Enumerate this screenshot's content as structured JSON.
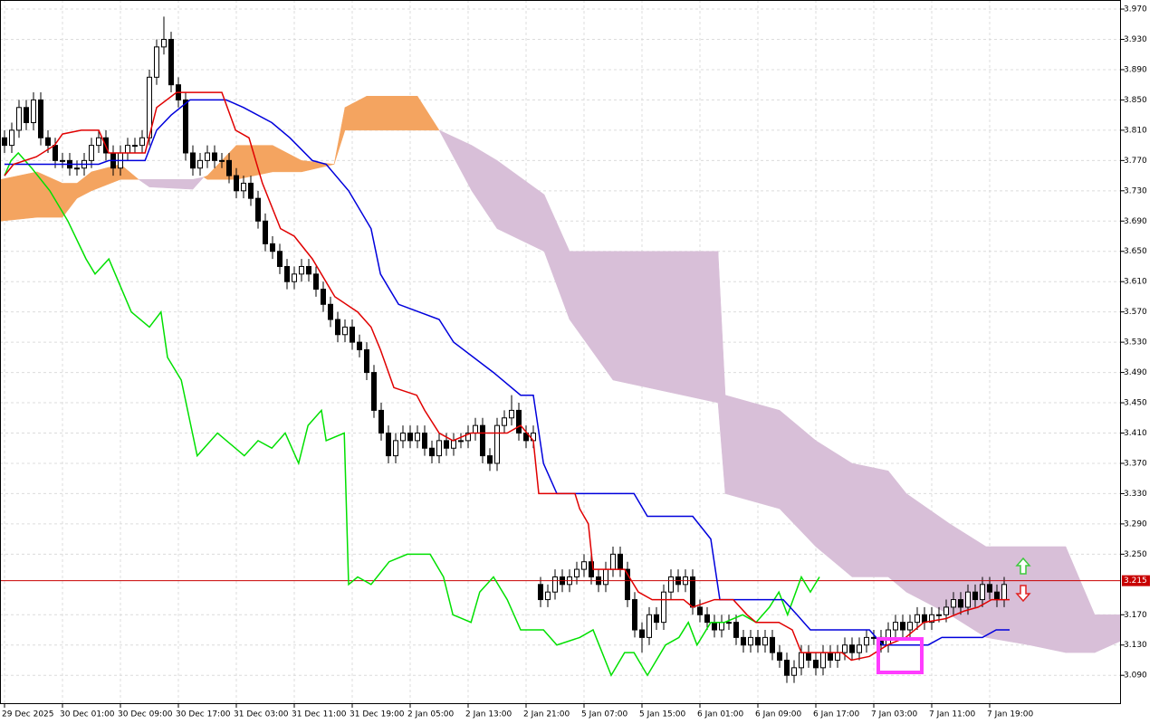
{
  "chart_data": {
    "type": "candlestick",
    "xlim": [
      -0.625,
      154.125
    ],
    "ylim": [
      3.052,
      3.982
    ],
    "grid": true,
    "yticks": [
      {
        "value": 3.97,
        "label": "3.970"
      },
      {
        "value": 3.93,
        "label": "3.930"
      },
      {
        "value": 3.89,
        "label": "3.890"
      },
      {
        "value": 3.85,
        "label": "3.850"
      },
      {
        "value": 3.81,
        "label": "3.810"
      },
      {
        "value": 3.77,
        "label": "3.770"
      },
      {
        "value": 3.73,
        "label": "3.730"
      },
      {
        "value": 3.69,
        "label": "3.690"
      },
      {
        "value": 3.65,
        "label": "3.650"
      },
      {
        "value": 3.61,
        "label": "3.610"
      },
      {
        "value": 3.57,
        "label": "3.570"
      },
      {
        "value": 3.53,
        "label": "3.530"
      },
      {
        "value": 3.49,
        "label": "3.490"
      },
      {
        "value": 3.45,
        "label": "3.450"
      },
      {
        "value": 3.41,
        "label": "3.410"
      },
      {
        "value": 3.37,
        "label": "3.370"
      },
      {
        "value": 3.33,
        "label": "3.330"
      },
      {
        "value": 3.29,
        "label": "3.290"
      },
      {
        "value": 3.25,
        "label": "3.250"
      },
      {
        "value": 3.17,
        "label": "3.170"
      },
      {
        "value": 3.13,
        "label": "3.130"
      },
      {
        "value": 3.09,
        "label": "3.090"
      }
    ],
    "xticks": [
      {
        "value": 0,
        "label": "29 Dec 2025"
      },
      {
        "value": 8,
        "label": "30 Dec 01:00"
      },
      {
        "value": 16,
        "label": "30 Dec 09:00"
      },
      {
        "value": 24,
        "label": "30 Dec 17:00"
      },
      {
        "value": 32,
        "label": "31 Dec 03:00"
      },
      {
        "value": 40,
        "label": "31 Dec 11:00"
      },
      {
        "value": 48,
        "label": "31 Dec 19:00"
      },
      {
        "value": 56,
        "label": "2 Jan 05:00"
      },
      {
        "value": 64,
        "label": "2 Jan 13:00"
      },
      {
        "value": 72,
        "label": "2 Jan 21:00"
      },
      {
        "value": 80,
        "label": "5 Jan 07:00"
      },
      {
        "value": 88,
        "label": "5 Jan 15:00"
      },
      {
        "value": 96,
        "label": "6 Jan 01:00"
      },
      {
        "value": 104,
        "label": "6 Jan 09:00"
      },
      {
        "value": 112,
        "label": "6 Jan 17:00"
      },
      {
        "value": 120,
        "label": "7 Jan 03:00"
      },
      {
        "value": 128,
        "label": "7 Jan 11:00"
      },
      {
        "value": 136,
        "label": "7 Jan 19:00"
      }
    ],
    "current_price": {
      "value": 3.215,
      "label": "3.215",
      "color": "#c80000"
    },
    "candles": {
      "color_up": "#ffffff",
      "color_down": "#000000",
      "open": [
        3.8,
        3.79,
        3.81,
        3.84,
        3.82,
        3.85,
        3.8,
        3.79,
        3.77,
        3.77,
        3.76,
        3.76,
        3.77,
        3.79,
        3.8,
        3.78,
        3.76,
        3.78,
        3.79,
        3.79,
        3.8,
        3.88,
        3.92,
        3.93,
        3.87,
        3.85,
        3.78,
        3.76,
        3.77,
        3.78,
        3.77,
        3.77,
        3.75,
        3.73,
        3.74,
        3.72,
        3.69,
        3.66,
        3.65,
        3.63,
        3.61,
        3.62,
        3.63,
        3.62,
        3.6,
        3.58,
        3.56,
        3.54,
        3.55,
        3.53,
        3.52,
        3.49,
        3.44,
        3.41,
        3.38,
        3.4,
        3.41,
        3.4,
        3.41,
        3.39,
        3.38,
        3.4,
        3.39,
        3.4,
        3.4,
        3.41,
        3.42,
        3.38,
        3.37,
        3.42,
        3.43,
        3.44,
        3.41,
        3.4,
        3.21,
        3.19,
        3.2,
        3.22,
        3.21,
        3.22,
        3.23,
        3.24,
        3.22,
        3.21,
        3.23,
        3.25,
        3.23,
        3.19,
        3.15,
        3.14,
        3.17,
        3.16,
        3.2,
        3.22,
        3.21,
        3.22,
        3.18,
        3.17,
        3.16,
        3.15,
        3.16,
        3.16,
        3.14,
        3.13,
        3.14,
        3.13,
        3.14,
        3.12,
        3.11,
        3.09,
        3.1,
        3.12,
        3.11,
        3.1,
        3.12,
        3.11,
        3.12,
        3.13,
        3.12,
        3.13,
        3.14,
        3.14,
        3.13,
        3.15,
        3.16,
        3.15,
        3.16,
        3.17,
        3.16,
        3.17,
        3.17,
        3.18,
        3.19,
        3.18,
        3.2,
        3.19,
        3.21,
        3.2,
        3.19
      ],
      "high": [
        3.81,
        3.82,
        3.85,
        3.85,
        3.86,
        3.86,
        3.81,
        3.8,
        3.78,
        3.78,
        3.77,
        3.78,
        3.8,
        3.81,
        3.81,
        3.79,
        3.79,
        3.8,
        3.8,
        3.81,
        3.89,
        3.93,
        3.96,
        3.94,
        3.88,
        3.86,
        3.79,
        3.78,
        3.79,
        3.79,
        3.78,
        3.78,
        3.76,
        3.75,
        3.75,
        3.73,
        3.7,
        3.67,
        3.66,
        3.64,
        3.63,
        3.64,
        3.64,
        3.63,
        3.61,
        3.59,
        3.57,
        3.56,
        3.56,
        3.54,
        3.53,
        3.5,
        3.45,
        3.42,
        3.41,
        3.42,
        3.42,
        3.42,
        3.42,
        3.4,
        3.41,
        3.41,
        3.41,
        3.41,
        3.42,
        3.43,
        3.43,
        3.39,
        3.43,
        3.44,
        3.46,
        3.45,
        3.42,
        3.42,
        3.22,
        3.21,
        3.23,
        3.23,
        3.23,
        3.24,
        3.25,
        3.25,
        3.23,
        3.24,
        3.26,
        3.26,
        3.24,
        3.2,
        3.16,
        3.18,
        3.18,
        3.21,
        3.23,
        3.23,
        3.23,
        3.23,
        3.19,
        3.18,
        3.17,
        3.17,
        3.17,
        3.17,
        3.15,
        3.15,
        3.15,
        3.15,
        3.15,
        3.13,
        3.12,
        3.11,
        3.13,
        3.13,
        3.12,
        3.13,
        3.13,
        3.13,
        3.14,
        3.14,
        3.14,
        3.15,
        3.15,
        3.15,
        3.16,
        3.17,
        3.17,
        3.17,
        3.18,
        3.18,
        3.18,
        3.18,
        3.19,
        3.2,
        3.2,
        3.21,
        3.21,
        3.22,
        3.22,
        3.21,
        3.22
      ],
      "low": [
        3.78,
        3.78,
        3.8,
        3.81,
        3.81,
        3.79,
        3.78,
        3.76,
        3.76,
        3.75,
        3.75,
        3.75,
        3.76,
        3.78,
        3.77,
        3.75,
        3.75,
        3.77,
        3.78,
        3.78,
        3.79,
        3.87,
        3.91,
        3.86,
        3.84,
        3.77,
        3.75,
        3.75,
        3.76,
        3.76,
        3.76,
        3.74,
        3.72,
        3.72,
        3.71,
        3.68,
        3.65,
        3.64,
        3.62,
        3.6,
        3.6,
        3.61,
        3.61,
        3.59,
        3.57,
        3.55,
        3.53,
        3.53,
        3.52,
        3.51,
        3.48,
        3.43,
        3.4,
        3.37,
        3.37,
        3.39,
        3.39,
        3.39,
        3.38,
        3.37,
        3.37,
        3.38,
        3.38,
        3.39,
        3.39,
        3.4,
        3.37,
        3.36,
        3.36,
        3.41,
        3.42,
        3.4,
        3.39,
        3.39,
        3.18,
        3.18,
        3.19,
        3.2,
        3.2,
        3.21,
        3.22,
        3.21,
        3.2,
        3.2,
        3.22,
        3.22,
        3.18,
        3.14,
        3.12,
        3.13,
        3.15,
        3.15,
        3.19,
        3.2,
        3.2,
        3.17,
        3.16,
        3.15,
        3.14,
        3.14,
        3.15,
        3.13,
        3.12,
        3.12,
        3.12,
        3.12,
        3.11,
        3.1,
        3.08,
        3.08,
        3.09,
        3.1,
        3.09,
        3.09,
        3.1,
        3.1,
        3.11,
        3.11,
        3.11,
        3.12,
        3.13,
        3.12,
        3.12,
        3.14,
        3.14,
        3.14,
        3.15,
        3.15,
        3.15,
        3.16,
        3.16,
        3.17,
        3.17,
        3.17,
        3.18,
        3.18,
        3.19,
        3.18,
        3.18
      ],
      "close": [
        3.79,
        3.81,
        3.84,
        3.82,
        3.85,
        3.8,
        3.79,
        3.77,
        3.77,
        3.76,
        3.76,
        3.77,
        3.79,
        3.8,
        3.78,
        3.76,
        3.78,
        3.79,
        3.79,
        3.8,
        3.88,
        3.92,
        3.93,
        3.87,
        3.85,
        3.78,
        3.76,
        3.77,
        3.78,
        3.77,
        3.77,
        3.75,
        3.73,
        3.74,
        3.72,
        3.69,
        3.66,
        3.65,
        3.63,
        3.61,
        3.62,
        3.63,
        3.62,
        3.6,
        3.58,
        3.56,
        3.54,
        3.55,
        3.53,
        3.52,
        3.49,
        3.44,
        3.41,
        3.38,
        3.4,
        3.41,
        3.4,
        3.41,
        3.39,
        3.38,
        3.4,
        3.39,
        3.4,
        3.4,
        3.41,
        3.42,
        3.38,
        3.37,
        3.42,
        3.43,
        3.44,
        3.41,
        3.4,
        3.41,
        3.19,
        3.2,
        3.22,
        3.21,
        3.22,
        3.23,
        3.24,
        3.22,
        3.21,
        3.23,
        3.25,
        3.23,
        3.19,
        3.15,
        3.14,
        3.17,
        3.16,
        3.2,
        3.22,
        3.21,
        3.22,
        3.18,
        3.17,
        3.16,
        3.15,
        3.16,
        3.16,
        3.14,
        3.13,
        3.14,
        3.13,
        3.14,
        3.12,
        3.11,
        3.09,
        3.1,
        3.12,
        3.11,
        3.1,
        3.12,
        3.11,
        3.12,
        3.13,
        3.12,
        3.13,
        3.14,
        3.14,
        3.13,
        3.15,
        3.16,
        3.15,
        3.16,
        3.17,
        3.16,
        3.17,
        3.17,
        3.18,
        3.19,
        3.18,
        3.2,
        3.19,
        3.21,
        3.2,
        3.19,
        3.21
      ]
    },
    "cloud": {
      "color_up": "#f4a460",
      "color_down": "#d8bfd8",
      "x": [
        -0.5,
        4.5,
        8,
        10,
        12,
        16,
        18.5,
        20,
        26,
        27.5,
        28,
        32,
        37,
        41,
        45.5,
        47,
        50,
        57,
        60,
        64.5,
        68,
        74.5,
        78,
        84,
        98.5,
        99.5,
        107,
        112,
        117,
        122,
        124.5,
        130.5,
        135.5,
        141.5,
        146.5,
        150.5,
        154
      ],
      "span_a": [
        3.745,
        3.755,
        3.74,
        3.74,
        3.755,
        3.765,
        3.745,
        3.735,
        3.732,
        3.748,
        3.75,
        3.79,
        3.79,
        3.77,
        3.765,
        3.84,
        3.855,
        3.855,
        3.81,
        3.73,
        3.68,
        3.65,
        3.56,
        3.48,
        3.45,
        3.33,
        3.31,
        3.26,
        3.22,
        3.22,
        3.2,
        3.17,
        3.14,
        3.13,
        3.12,
        3.12,
        3.135
      ],
      "span_b": [
        3.69,
        3.695,
        3.695,
        3.72,
        3.73,
        3.745,
        3.745,
        3.745,
        3.745,
        3.748,
        3.745,
        3.745,
        3.755,
        3.755,
        3.765,
        3.81,
        3.81,
        3.81,
        3.81,
        3.79,
        3.77,
        3.725,
        3.65,
        3.65,
        3.65,
        3.46,
        3.44,
        3.4,
        3.37,
        3.36,
        3.33,
        3.29,
        3.26,
        3.26,
        3.26,
        3.17,
        3.17
      ]
    },
    "lines": [
      {
        "color": "#00e000",
        "x": [
          0,
          0.9,
          1.9,
          3.75,
          6.25,
          8.75,
          11.25,
          12.5,
          14.4,
          17.5,
          20,
          21.6,
          22.5,
          24.4,
          26.6,
          29.4,
          33.1,
          35,
          36.9,
          38.75,
          40.6,
          41.9,
          43.75,
          44.4,
          46.9,
          47.5,
          48.75,
          50.6,
          53.1,
          55.6,
          58.75,
          60.6,
          61.9,
          64.4,
          65.6,
          67.5,
          69.4,
          71.25,
          74.4,
          76.25,
          79.4,
          81.25,
          83.75,
          85.6,
          86.9,
          88.75,
          91.25,
          93.1,
          94.4,
          95.6,
          97.5,
          99.4,
          101.9,
          103.75,
          105.6,
          106.9,
          108.1,
          110,
          111.25,
          112.5
        ],
        "values": [
          3.75,
          3.77,
          3.78,
          3.76,
          3.73,
          3.69,
          3.64,
          3.62,
          3.64,
          3.57,
          3.55,
          3.57,
          3.51,
          3.48,
          3.38,
          3.41,
          3.38,
          3.4,
          3.39,
          3.41,
          3.37,
          3.42,
          3.44,
          3.4,
          3.41,
          3.21,
          3.22,
          3.21,
          3.24,
          3.25,
          3.25,
          3.22,
          3.17,
          3.16,
          3.2,
          3.22,
          3.19,
          3.15,
          3.15,
          3.13,
          3.14,
          3.15,
          3.09,
          3.12,
          3.12,
          3.09,
          3.13,
          3.14,
          3.16,
          3.13,
          3.16,
          3.16,
          3.17,
          3.16,
          3.18,
          3.2,
          3.17,
          3.22,
          3.2,
          3.22
        ]
      },
      {
        "color": "#0000dc",
        "x": [
          0,
          13,
          14.4,
          19.4,
          21,
          23,
          25.6,
          30.6,
          33,
          36.9,
          39.4,
          42.5,
          44.4,
          47.5,
          50.6,
          51.9,
          54.4,
          60,
          62,
          67.5,
          71.25,
          73,
          74.4,
          76.25,
          86.9,
          88.75,
          95,
          97.5,
          98.75,
          107.5,
          109.4,
          111.25,
          119.4,
          121.25,
          127.5,
          129.4,
          131.25,
          135,
          136.9,
          138.75
        ],
        "values": [
          3.765,
          3.765,
          3.77,
          3.77,
          3.81,
          3.83,
          3.85,
          3.85,
          3.84,
          3.82,
          3.8,
          3.77,
          3.765,
          3.73,
          3.68,
          3.62,
          3.58,
          3.56,
          3.53,
          3.49,
          3.46,
          3.46,
          3.37,
          3.33,
          3.33,
          3.3,
          3.3,
          3.27,
          3.19,
          3.19,
          3.17,
          3.15,
          3.15,
          3.13,
          3.13,
          3.14,
          3.14,
          3.14,
          3.15,
          3.15
        ]
      },
      {
        "color": "#e00000",
        "x": [
          0,
          1.25,
          4.4,
          6.9,
          8,
          10.6,
          13,
          14.4,
          19.4,
          21,
          23.75,
          30,
          31.9,
          33.75,
          35.6,
          38.1,
          40,
          42.5,
          45.6,
          48.75,
          50.6,
          51.9,
          53.75,
          56.9,
          58,
          60,
          61.9,
          64.4,
          69.4,
          71.25,
          73,
          73.75,
          78.75,
          79.4,
          80.6,
          81.25,
          85.6,
          87.5,
          89.4,
          93.75,
          95,
          98,
          100.6,
          102.5,
          103.75,
          106.9,
          108.75,
          110,
          115.6,
          116.9,
          119.4,
          121.9,
          124.4,
          126.9,
          130,
          132.5,
          134.4,
          136.25,
          138.75
        ],
        "values": [
          3.75,
          3.765,
          3.775,
          3.79,
          3.805,
          3.81,
          3.81,
          3.78,
          3.78,
          3.84,
          3.86,
          3.86,
          3.81,
          3.8,
          3.74,
          3.68,
          3.67,
          3.64,
          3.59,
          3.57,
          3.55,
          3.52,
          3.47,
          3.46,
          3.44,
          3.41,
          3.4,
          3.41,
          3.41,
          3.42,
          3.4,
          3.33,
          3.33,
          3.31,
          3.29,
          3.23,
          3.23,
          3.2,
          3.19,
          3.19,
          3.18,
          3.19,
          3.19,
          3.17,
          3.16,
          3.16,
          3.15,
          3.12,
          3.12,
          3.11,
          3.115,
          3.13,
          3.14,
          3.16,
          3.165,
          3.175,
          3.18,
          3.19,
          3.19
        ]
      }
    ]
  }
}
